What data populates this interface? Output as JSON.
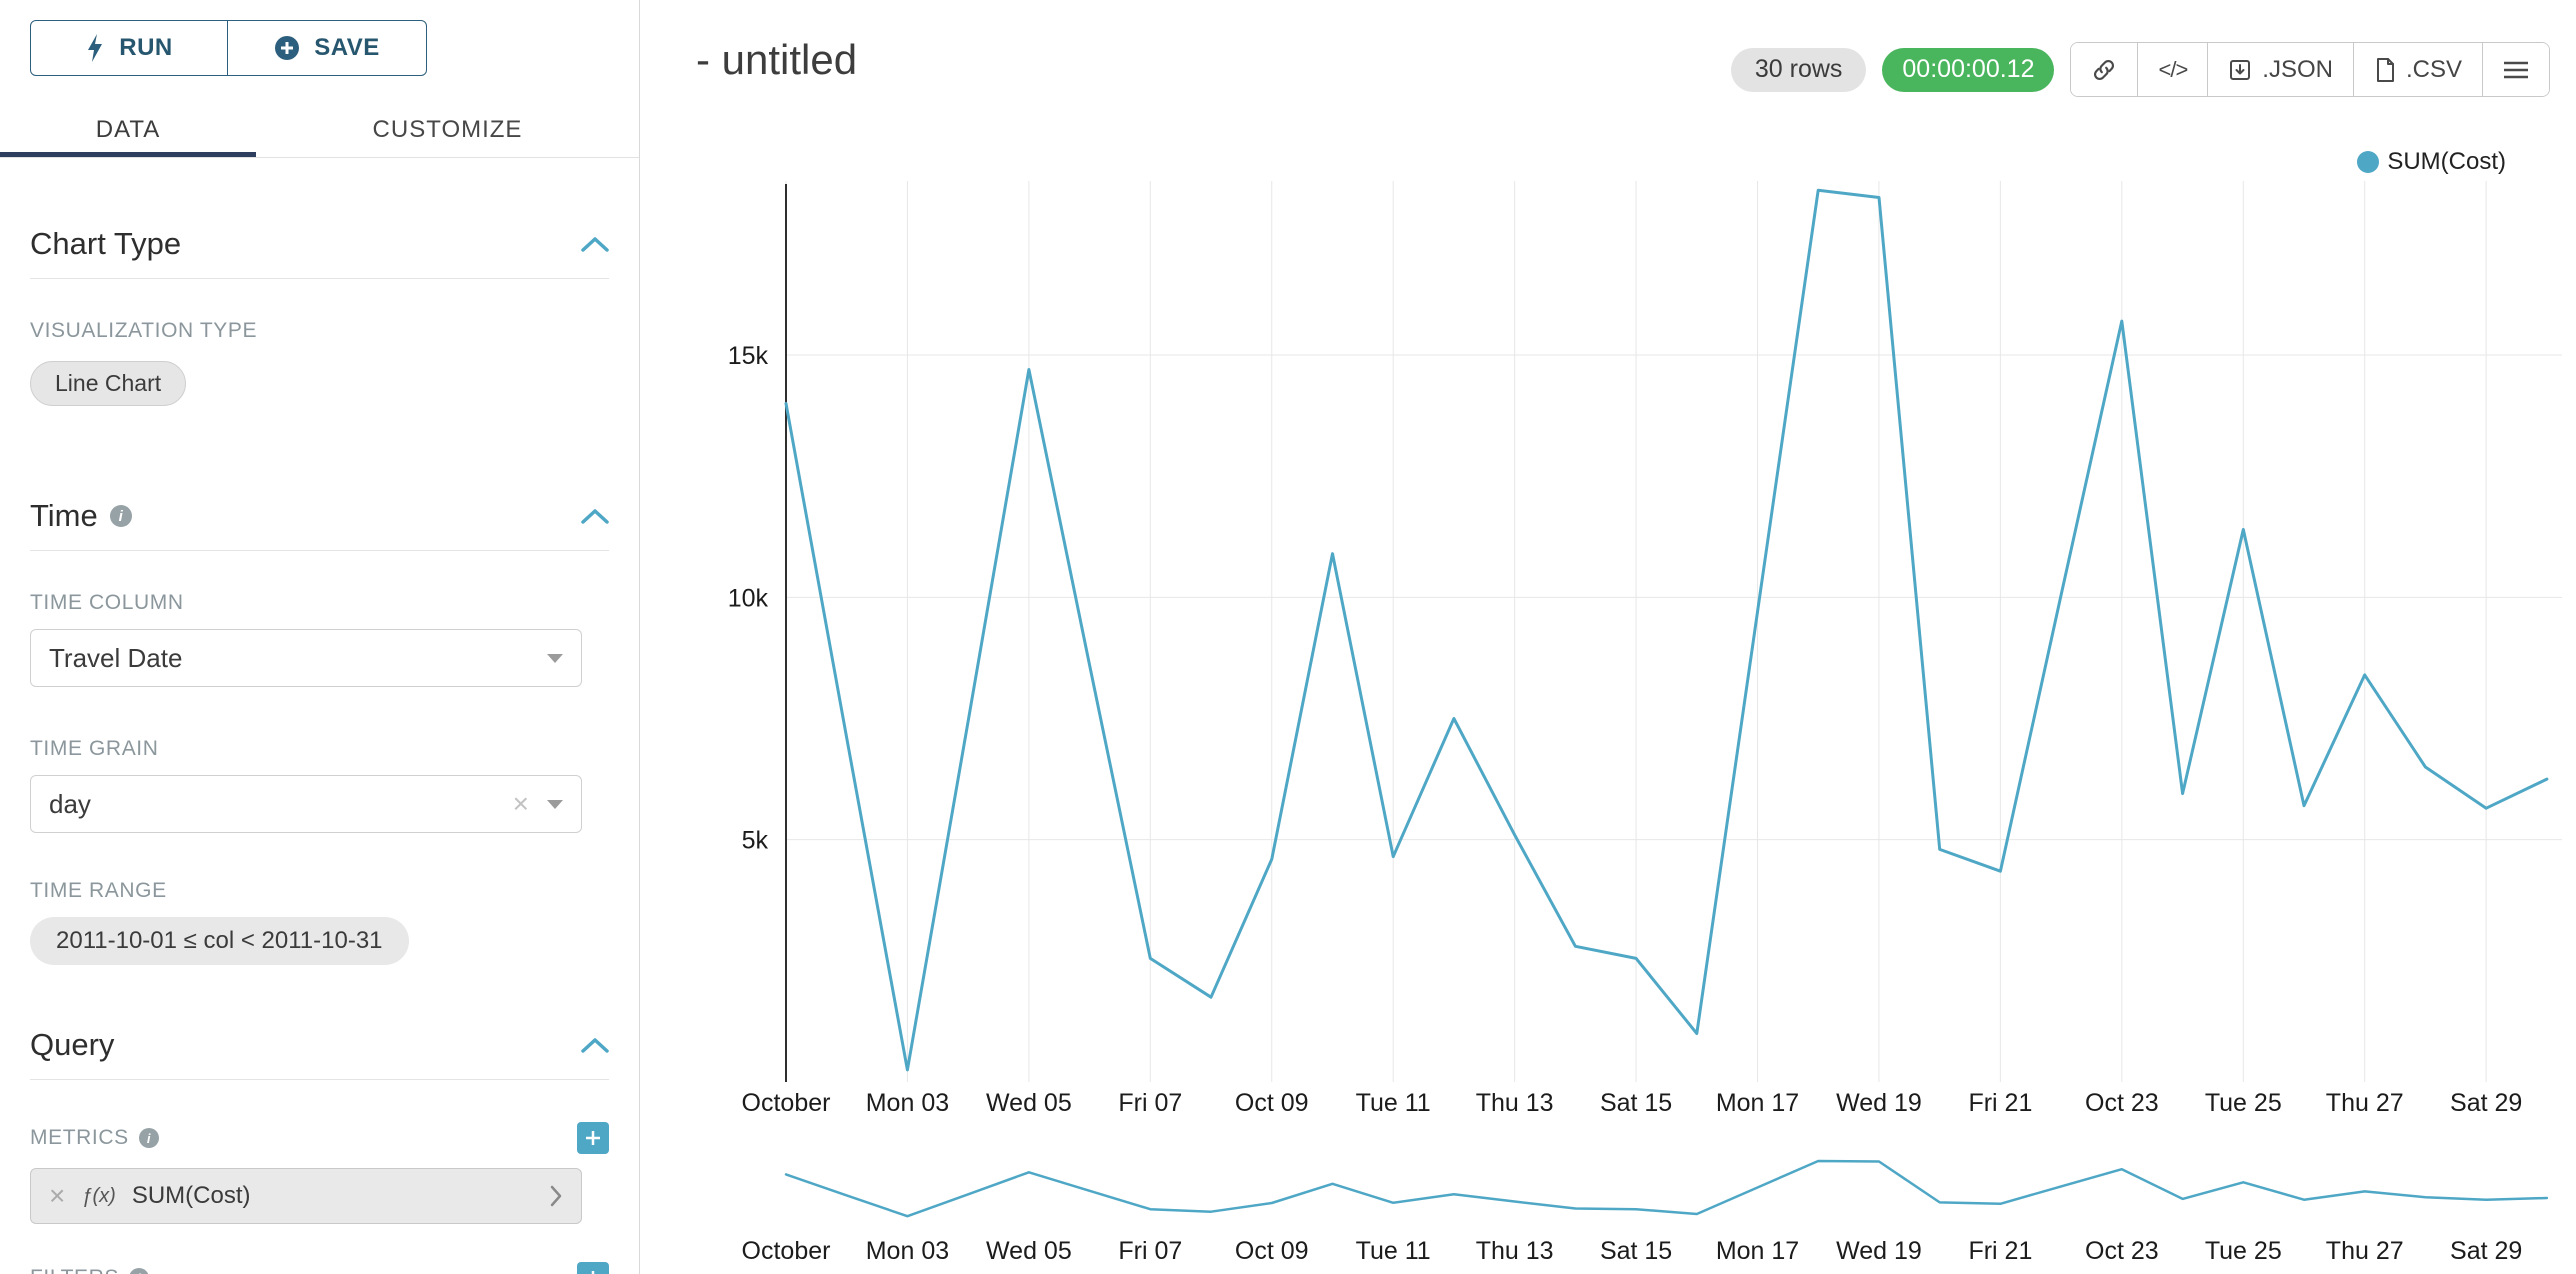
{
  "colors": {
    "accent_teal": "#4FA7C6",
    "timer_green": "#49b55d",
    "tab_underline_navy": "#2d3e5f",
    "button_blue": "#2c5f7d",
    "grid_gray": "#e7e7e7"
  },
  "sidebar": {
    "run_label": "RUN",
    "save_label": "SAVE",
    "tabs": [
      {
        "label": "DATA",
        "active": true
      },
      {
        "label": "CUSTOMIZE",
        "active": false
      }
    ],
    "chart_type": {
      "title": "Chart Type",
      "viz_label": "VISUALIZATION TYPE",
      "viz_value": "Line Chart"
    },
    "time": {
      "title": "Time",
      "column_label": "TIME COLUMN",
      "column_value": "Travel Date",
      "grain_label": "TIME GRAIN",
      "grain_value": "day",
      "range_label": "TIME RANGE",
      "range_value": "2011-10-01 ≤ col < 2011-10-31"
    },
    "query": {
      "title": "Query",
      "metrics_label": "METRICS",
      "metric_fx": "ƒ(x)",
      "metric_value": "SUM(Cost)",
      "filters_label": "FILTERS"
    }
  },
  "header": {
    "title": "- untitled",
    "rows_badge": "30 rows",
    "timer": "00:00:00.12",
    "code_label": "</>",
    "json_label": ".JSON",
    "csv_label": ".CSV"
  },
  "legend": {
    "label": "SUM(Cost)"
  },
  "chart_data": {
    "type": "line",
    "title": "",
    "xlabel": "",
    "ylabel": "",
    "legend_position": "top-right",
    "grid": true,
    "line_color": "#4FA7C6",
    "ylim": [
      0,
      18600
    ],
    "y_ticks": [
      5000,
      10000,
      15000
    ],
    "y_tick_labels": [
      "5k",
      "10k",
      "15k"
    ],
    "x_days": [
      1,
      2,
      3,
      4,
      5,
      6,
      7,
      8,
      9,
      10,
      11,
      12,
      13,
      14,
      15,
      16,
      17,
      18,
      19,
      20,
      21,
      22,
      23,
      24,
      25,
      26,
      27,
      28,
      29,
      30
    ],
    "x_tick_days": [
      1,
      3,
      5,
      7,
      9,
      11,
      13,
      15,
      17,
      19,
      21,
      23,
      25,
      27,
      29
    ],
    "x_tick_labels": [
      "October",
      "Mon 03",
      "Wed 05",
      "Fri 07",
      "Oct 09",
      "Tue 11",
      "Thu 13",
      "Sat 15",
      "Mon 17",
      "Wed 19",
      "Fri 21",
      "Oct 23",
      "Tue 25",
      "Thu 27",
      "Sat 29"
    ],
    "series": [
      {
        "name": "SUM(Cost)",
        "values": [
          14000,
          7100,
          250,
          7450,
          14700,
          8600,
          2550,
          1750,
          4600,
          10900,
          4650,
          7500,
          5100,
          2800,
          2550,
          1000,
          9700,
          18400,
          18250,
          4800,
          4350,
          10050,
          15700,
          5950,
          11400,
          5700,
          8400,
          6500,
          5650,
          6250
        ]
      }
    ],
    "has_mini_range_chart": true
  }
}
